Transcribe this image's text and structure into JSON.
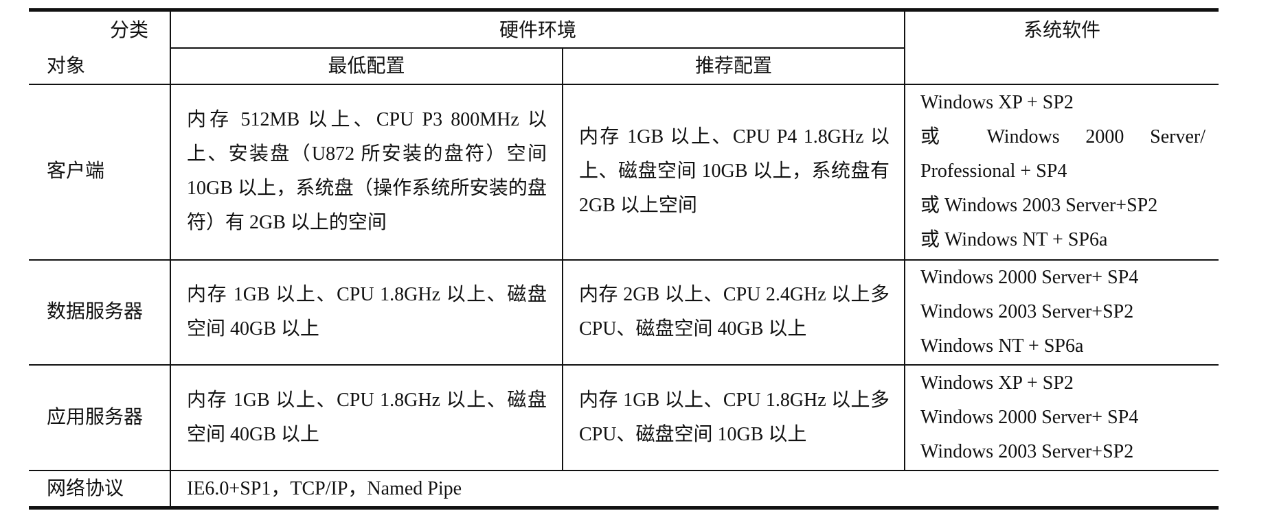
{
  "header": {
    "category": "分类",
    "object": "对象",
    "hardware": "硬件环境",
    "min_config": "最低配置",
    "rec_config": "推荐配置",
    "software": "系统软件"
  },
  "rows": [
    {
      "name": "客户端",
      "min": "内存 512MB 以上、CPU P3 800MHz 以上、安装盘（U872 所安装的盘符）空间 10GB 以上，系统盘（操作系统所安装的盘符）有 2GB 以上的空间",
      "rec": "内存 1GB 以上、CPU P4 1.8GHz 以上、磁盘空间 10GB 以上，系统盘有 2GB 以上空间",
      "software": [
        "Windows XP + SP2",
        "或 Windows 2000 Server/ Professional + SP4",
        "或 Windows 2003 Server+SP2",
        "或 Windows NT + SP6a"
      ]
    },
    {
      "name": "数据服务器",
      "min": "内存 1GB 以上、CPU 1.8GHz 以上、磁盘空间 40GB 以上",
      "rec": "内存 2GB 以上、CPU 2.4GHz 以上多 CPU、磁盘空间 40GB 以上",
      "software": [
        "Windows 2000 Server+ SP4",
        "Windows 2003 Server+SP2",
        "Windows NT + SP6a"
      ]
    },
    {
      "name": "应用服务器",
      "min": "内存 1GB 以上、CPU 1.8GHz 以上、磁盘空间 40GB 以上",
      "rec": "内存 1GB 以上、CPU 1.8GHz 以上多 CPU、磁盘空间 10GB 以上",
      "software": [
        "Windows XP + SP2",
        "Windows 2000 Server+ SP4",
        "Windows 2003 Server+SP2"
      ]
    }
  ],
  "network": {
    "name": "网络协议",
    "value": "IE6.0+SP1，TCP/IP，Named Pipe"
  }
}
